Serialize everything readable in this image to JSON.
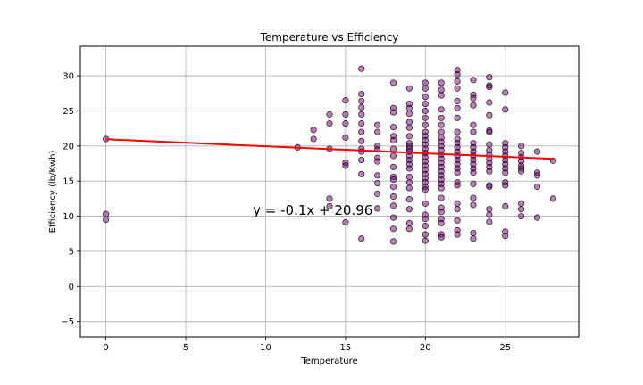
{
  "chart_data": {
    "type": "scatter",
    "title": "Temperature vs Efficiency",
    "xlabel": "Temperature",
    "ylabel": "Efficiency (lb/Kwh)",
    "xlim": [
      -1.6,
      29.6
    ],
    "ylim": [
      -7.2,
      34.2
    ],
    "xticks": [
      0,
      5,
      10,
      15,
      20,
      25
    ],
    "yticks": [
      -5,
      0,
      5,
      10,
      15,
      20,
      25,
      30
    ],
    "grid": true,
    "colors": {
      "points": "#800080",
      "edge": "#000000",
      "regression": "#ff0000",
      "grid": "#b0b0b0"
    },
    "points": [
      [
        0,
        21.0
      ],
      [
        0,
        10.3
      ],
      [
        0,
        9.5
      ],
      [
        12,
        19.8
      ],
      [
        13,
        22.3
      ],
      [
        13,
        21.0
      ],
      [
        14,
        24.5
      ],
      [
        14,
        23.2
      ],
      [
        14,
        19.6
      ],
      [
        14,
        12.5
      ],
      [
        14,
        11.4
      ],
      [
        15,
        26.5
      ],
      [
        15,
        24.5
      ],
      [
        15,
        23.2
      ],
      [
        15,
        21.2
      ],
      [
        15,
        17.6
      ],
      [
        15,
        17.2
      ],
      [
        15,
        9.1
      ],
      [
        16,
        31.0
      ],
      [
        16,
        27.4
      ],
      [
        16,
        26.4
      ],
      [
        16,
        25.5
      ],
      [
        16,
        24.5
      ],
      [
        16,
        23.2
      ],
      [
        16,
        22.0
      ],
      [
        16,
        20.7
      ],
      [
        16,
        19.6
      ],
      [
        16,
        19.2
      ],
      [
        16,
        18.0
      ],
      [
        16,
        16.0
      ],
      [
        16,
        6.8
      ],
      [
        17,
        23.0
      ],
      [
        17,
        22.0
      ],
      [
        17,
        20.0
      ],
      [
        17,
        19.5
      ],
      [
        17,
        18.3
      ],
      [
        17,
        17.8
      ],
      [
        17,
        15.8
      ],
      [
        17,
        14.7
      ],
      [
        17,
        13.2
      ],
      [
        17,
        11.1
      ],
      [
        18,
        29.0
      ],
      [
        18,
        25.4
      ],
      [
        18,
        24.8
      ],
      [
        18,
        22.7
      ],
      [
        18,
        21.4
      ],
      [
        18,
        20.8
      ],
      [
        18,
        19.6
      ],
      [
        18,
        18.6
      ],
      [
        18,
        17.0
      ],
      [
        18,
        15.6
      ],
      [
        18,
        15.2
      ],
      [
        18,
        14.2
      ],
      [
        18,
        12.8
      ],
      [
        18,
        11.5
      ],
      [
        18,
        9.8
      ],
      [
        18,
        8.2
      ],
      [
        18,
        6.4
      ],
      [
        19,
        28.2
      ],
      [
        19,
        26.0
      ],
      [
        19,
        25.4
      ],
      [
        19,
        24.6
      ],
      [
        19,
        23.4
      ],
      [
        19,
        22.6
      ],
      [
        19,
        21.4
      ],
      [
        19,
        20.4
      ],
      [
        19,
        20.0
      ],
      [
        19,
        19.6
      ],
      [
        19,
        19.2
      ],
      [
        19,
        18.6
      ],
      [
        19,
        18.0
      ],
      [
        19,
        17.4
      ],
      [
        19,
        16.8
      ],
      [
        19,
        15.6
      ],
      [
        19,
        14.8
      ],
      [
        19,
        14.0
      ],
      [
        19,
        12.4
      ],
      [
        19,
        11.0
      ],
      [
        19,
        9.0
      ],
      [
        19,
        8.2
      ],
      [
        20,
        29.0
      ],
      [
        20,
        28.2
      ],
      [
        20,
        27.0
      ],
      [
        20,
        26.0
      ],
      [
        20,
        25.0
      ],
      [
        20,
        24.0
      ],
      [
        20,
        23.0
      ],
      [
        20,
        22.0
      ],
      [
        20,
        21.4
      ],
      [
        20,
        20.8
      ],
      [
        20,
        20.2
      ],
      [
        20,
        19.6
      ],
      [
        20,
        19.0
      ],
      [
        20,
        18.4
      ],
      [
        20,
        17.8
      ],
      [
        20,
        17.2
      ],
      [
        20,
        16.6
      ],
      [
        20,
        16.0
      ],
      [
        20,
        15.4
      ],
      [
        20,
        14.8
      ],
      [
        20,
        14.2
      ],
      [
        20,
        13.8
      ],
      [
        20,
        11.8
      ],
      [
        20,
        10.2
      ],
      [
        20,
        9.6
      ],
      [
        20,
        8.6
      ],
      [
        20,
        7.4
      ],
      [
        20,
        6.5
      ],
      [
        21,
        29.0
      ],
      [
        21,
        28.0
      ],
      [
        21,
        27.2
      ],
      [
        21,
        25.2
      ],
      [
        21,
        24.0
      ],
      [
        21,
        23.0
      ],
      [
        21,
        22.0
      ],
      [
        21,
        21.2
      ],
      [
        21,
        20.6
      ],
      [
        21,
        20.0
      ],
      [
        21,
        19.4
      ],
      [
        21,
        18.8
      ],
      [
        21,
        18.2
      ],
      [
        21,
        17.6
      ],
      [
        21,
        17.0
      ],
      [
        21,
        16.4
      ],
      [
        21,
        15.8
      ],
      [
        21,
        15.2
      ],
      [
        21,
        14.6
      ],
      [
        21,
        14.0
      ],
      [
        21,
        12.6
      ],
      [
        21,
        11.2
      ],
      [
        21,
        10.6
      ],
      [
        21,
        9.6
      ],
      [
        21,
        9.0
      ],
      [
        21,
        7.4
      ],
      [
        21,
        7.0
      ],
      [
        22,
        30.8
      ],
      [
        22,
        30.2
      ],
      [
        22,
        29.2
      ],
      [
        22,
        28.2
      ],
      [
        22,
        26.4
      ],
      [
        22,
        25.4
      ],
      [
        22,
        24.0
      ],
      [
        22,
        22.0
      ],
      [
        22,
        21.0
      ],
      [
        22,
        20.4
      ],
      [
        22,
        19.8
      ],
      [
        22,
        19.2
      ],
      [
        22,
        18.6
      ],
      [
        22,
        18.0
      ],
      [
        22,
        17.4
      ],
      [
        22,
        16.8
      ],
      [
        22,
        16.2
      ],
      [
        22,
        14.8
      ],
      [
        22,
        14.4
      ],
      [
        22,
        11.8
      ],
      [
        22,
        11.0
      ],
      [
        22,
        9.4
      ],
      [
        22,
        8.0
      ],
      [
        22,
        7.4
      ],
      [
        23,
        29.4
      ],
      [
        23,
        27.3
      ],
      [
        23,
        26.8
      ],
      [
        23,
        25.8
      ],
      [
        23,
        23.0
      ],
      [
        23,
        22.0
      ],
      [
        23,
        20.4
      ],
      [
        23,
        19.8
      ],
      [
        23,
        19.2
      ],
      [
        23,
        18.6
      ],
      [
        23,
        18.0
      ],
      [
        23,
        17.4
      ],
      [
        23,
        16.8
      ],
      [
        23,
        16.2
      ],
      [
        23,
        14.6
      ],
      [
        23,
        12.6
      ],
      [
        23,
        11.6
      ],
      [
        23,
        7.6
      ],
      [
        23,
        6.8
      ],
      [
        24,
        29.8
      ],
      [
        24,
        28.6
      ],
      [
        24,
        28.4
      ],
      [
        24,
        26.2
      ],
      [
        24,
        24.4
      ],
      [
        24,
        22.2
      ],
      [
        24,
        22.0
      ],
      [
        24,
        20.2
      ],
      [
        24,
        19.4
      ],
      [
        24,
        18.8
      ],
      [
        24,
        18.2
      ],
      [
        24,
        17.6
      ],
      [
        24,
        17.0
      ],
      [
        24,
        16.4
      ],
      [
        24,
        14.4
      ],
      [
        24,
        14.2
      ],
      [
        24,
        11.0
      ],
      [
        24,
        10.2
      ],
      [
        24,
        9.2
      ],
      [
        25,
        27.6
      ],
      [
        25,
        25.2
      ],
      [
        25,
        20.4
      ],
      [
        25,
        19.8
      ],
      [
        25,
        19.2
      ],
      [
        25,
        18.6
      ],
      [
        25,
        18.0
      ],
      [
        25,
        17.4
      ],
      [
        25,
        16.8
      ],
      [
        25,
        16.2
      ],
      [
        25,
        14.8
      ],
      [
        25,
        14.4
      ],
      [
        25,
        11.4
      ],
      [
        25,
        7.8
      ],
      [
        25,
        7.2
      ],
      [
        26,
        20.0
      ],
      [
        26,
        19.0
      ],
      [
        26,
        18.4
      ],
      [
        26,
        17.8
      ],
      [
        26,
        17.2
      ],
      [
        26,
        16.8
      ],
      [
        26,
        16.4
      ],
      [
        26,
        11.8
      ],
      [
        26,
        11.0
      ],
      [
        26,
        10.0
      ],
      [
        27,
        19.2
      ],
      [
        27,
        16.2
      ],
      [
        27,
        15.8
      ],
      [
        27,
        14.2
      ],
      [
        27,
        9.8
      ],
      [
        28,
        17.9
      ],
      [
        28,
        12.5
      ]
    ],
    "regression": {
      "x": [
        0,
        28
      ],
      "y": [
        20.96,
        18.16
      ]
    },
    "annotation": {
      "text": "y = -0.1x + 20.96",
      "x": 9.2,
      "y": 10.2
    }
  }
}
